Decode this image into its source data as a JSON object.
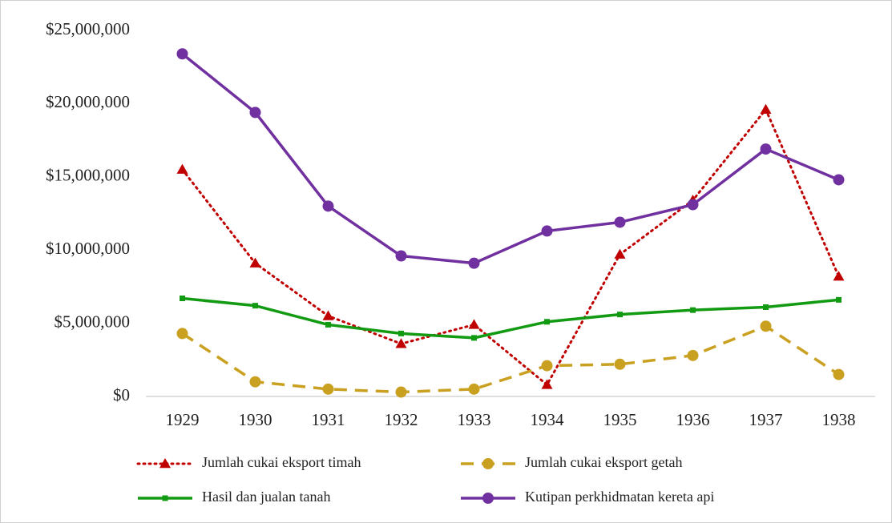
{
  "chart_data": {
    "type": "line",
    "categories": [
      "1929",
      "1930",
      "1931",
      "1932",
      "1933",
      "1934",
      "1935",
      "1936",
      "1937",
      "1938"
    ],
    "series": [
      {
        "name": "Jumlah cukai eksport timah",
        "color": "#c00000",
        "line_style": "dotted",
        "marker": "triangle",
        "values": [
          15500000,
          9100000,
          5500000,
          3600000,
          4900000,
          800000,
          9700000,
          13400000,
          19600000,
          8200000
        ]
      },
      {
        "name": "Jumlah cukai eksport getah",
        "color": "#c9a020",
        "line_style": "dashed",
        "marker": "circle",
        "values": [
          4300000,
          1000000,
          500000,
          300000,
          500000,
          2100000,
          2200000,
          2800000,
          4800000,
          1500000
        ]
      },
      {
        "name": "Hasil dan jualan tanah",
        "color": "#139a13",
        "line_style": "solid",
        "marker": "square",
        "values": [
          6700000,
          6200000,
          4900000,
          4300000,
          4000000,
          5100000,
          5600000,
          5900000,
          6100000,
          6600000
        ]
      },
      {
        "name": "Kutipan perkhidmatan kereta api",
        "color": "#7030a0",
        "line_style": "solid",
        "marker": "circle",
        "values": [
          23400000,
          19400000,
          13000000,
          9600000,
          9100000,
          11300000,
          11900000,
          13100000,
          16900000,
          14800000
        ]
      }
    ],
    "ylim": [
      0,
      25000000
    ],
    "yticks": [
      {
        "value": 0,
        "label": "$0"
      },
      {
        "value": 5000000,
        "label": "$5,000,000"
      },
      {
        "value": 10000000,
        "label": "$10,000,000"
      },
      {
        "value": 15000000,
        "label": "$15,000,000"
      },
      {
        "value": 20000000,
        "label": "$20,000,000"
      },
      {
        "value": 25000000,
        "label": "$25,000,000"
      }
    ],
    "grid": false,
    "legend": "bottom"
  }
}
